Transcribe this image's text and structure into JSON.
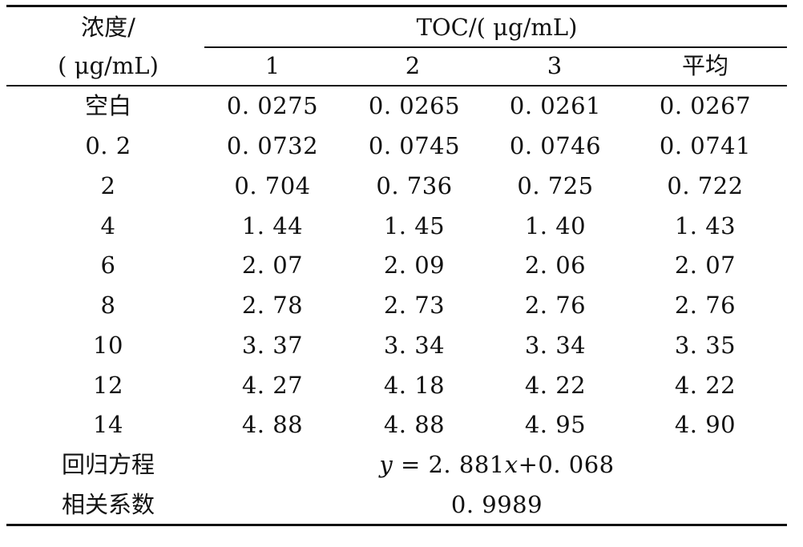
{
  "header": {
    "concentration_line1": "浓度/",
    "concentration_line2": "( μg/mL)",
    "toc_title": "TOC/( μg/mL)",
    "col1": "1",
    "col2": "2",
    "col3": "3",
    "col_avg": "平均"
  },
  "rows": [
    {
      "label": "空白",
      "v1": "0. 0275",
      "v2": "0. 0265",
      "v3": "0. 0261",
      "avg": "0. 0267"
    },
    {
      "label": "0. 2",
      "v1": "0. 0732",
      "v2": "0. 0745",
      "v3": "0. 0746",
      "avg": "0. 0741"
    },
    {
      "label": "2",
      "v1": "0. 704",
      "v2": "0. 736",
      "v3": "0. 725",
      "avg": "0. 722"
    },
    {
      "label": "4",
      "v1": "1. 44",
      "v2": "1. 45",
      "v3": "1. 40",
      "avg": "1. 43"
    },
    {
      "label": "6",
      "v1": "2. 07",
      "v2": "2. 09",
      "v3": "2. 06",
      "avg": "2. 07"
    },
    {
      "label": "8",
      "v1": "2. 78",
      "v2": "2. 73",
      "v3": "2. 76",
      "avg": "2. 76"
    },
    {
      "label": "10",
      "v1": "3. 37",
      "v2": "3. 34",
      "v3": "3. 34",
      "avg": "3. 35"
    },
    {
      "label": "12",
      "v1": "4. 27",
      "v2": "4. 18",
      "v3": "4. 22",
      "avg": "4. 22"
    },
    {
      "label": "14",
      "v1": "4. 88",
      "v2": "4. 88",
      "v3": "4. 95",
      "avg": "4. 90"
    }
  ],
  "footer": {
    "regression_label": "回归方程",
    "regression_y": "y",
    "regression_eq_mid": " = 2. 881",
    "regression_x": "x",
    "regression_eq_end": "+0. 068",
    "correlation_label": "相关系数",
    "correlation_value": "0. 9989"
  }
}
